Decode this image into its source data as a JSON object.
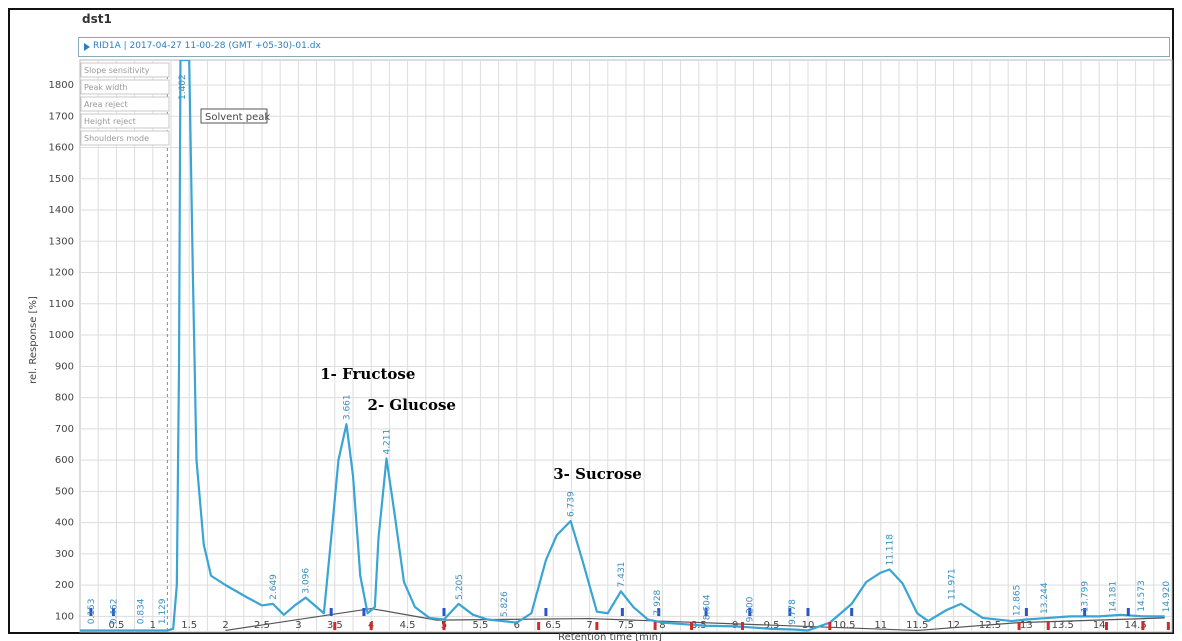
{
  "document": {
    "title": "dst1",
    "trace_label": "RID1A | 2017-04-27 11-00-28 (GMT +05-30)-01.dx"
  },
  "sidebar_menu": [
    "Slope sensitivity",
    "Peak width",
    "Area reject",
    "Height reject",
    "Shoulders mode"
  ],
  "solvent_peak_label": "Solvent peak",
  "colors": {
    "trace": "#3aa4d4",
    "baseline": "#555555",
    "grid": "#dddddd",
    "marker_blue": "#2a55c8",
    "marker_red": "#d22a2a"
  },
  "chart_data": {
    "type": "line",
    "title": "",
    "xlabel": "Retention time [min]",
    "ylabel": "rel. Response [%]",
    "xlim": [
      0,
      15
    ],
    "ylim": [
      50,
      1880
    ],
    "grid": true,
    "x_ticks": [
      0.5,
      1,
      1.5,
      2,
      2.5,
      3,
      3.5,
      4,
      4.5,
      5,
      5.5,
      6,
      6.5,
      7,
      7.5,
      8,
      8.5,
      9,
      9.5,
      10,
      10.5,
      11,
      11.5,
      12,
      12.5,
      13,
      13.5,
      14,
      14.5
    ],
    "x_tick_labels": [
      "0.5",
      "1",
      "1.5",
      "2",
      "2.5",
      "3",
      "3.5",
      "4",
      "4.5",
      "5",
      "5.5",
      "6",
      "6.5",
      "7",
      "7.5",
      "8",
      "8.5",
      "9",
      "9.5",
      "10",
      "10.5",
      "11",
      "11.5",
      "12",
      "12.5",
      "13",
      "13.5",
      "14",
      "14.5"
    ],
    "y_ticks": [
      100,
      200,
      300,
      400,
      500,
      600,
      700,
      800,
      900,
      1000,
      1100,
      1200,
      1300,
      1400,
      1500,
      1600,
      1700,
      1800
    ],
    "y_tick_labels": [
      "100",
      "200",
      "300",
      "400",
      "500",
      "600",
      "700",
      "800",
      "900",
      "1000",
      "1100",
      "1200",
      "1300",
      "1400",
      "1500",
      "1600",
      "1700",
      "1800"
    ],
    "series": [
      {
        "x": [
          0.0,
          0.3,
          1.0,
          1.2,
          1.28,
          1.33,
          1.36,
          1.38,
          1.41,
          1.45,
          1.5,
          1.55,
          1.6,
          1.7,
          1.8,
          2.0,
          2.3,
          2.5,
          2.65,
          2.8,
          2.95,
          3.1,
          3.25,
          3.35,
          3.45,
          3.55,
          3.66,
          3.75,
          3.85,
          3.95,
          4.05,
          4.1,
          4.21,
          4.32,
          4.45,
          4.6,
          4.8,
          5.0,
          5.2,
          5.4,
          5.6,
          5.8,
          6.0,
          6.2,
          6.4,
          6.55,
          6.74,
          6.9,
          7.1,
          7.25,
          7.43,
          7.6,
          7.8,
          8.0,
          8.3,
          8.6,
          9.0,
          9.2,
          9.5,
          9.8,
          10.0,
          10.3,
          10.6,
          10.8,
          11.0,
          11.12,
          11.3,
          11.5,
          11.65,
          11.9,
          12.1,
          12.4,
          12.8,
          13.0,
          13.3,
          13.6,
          13.8,
          14.0,
          14.3,
          14.6,
          14.9
        ],
        "y": [
          55,
          55,
          55,
          55,
          60,
          200,
          900,
          1880,
          1880,
          1880,
          1880,
          1200,
          600,
          330,
          230,
          200,
          160,
          135,
          140,
          105,
          135,
          160,
          130,
          110,
          350,
          600,
          715,
          550,
          230,
          110,
          130,
          350,
          605,
          430,
          210,
          130,
          95,
          90,
          140,
          105,
          90,
          85,
          80,
          110,
          280,
          360,
          405,
          280,
          115,
          110,
          180,
          130,
          90,
          80,
          75,
          70,
          68,
          65,
          60,
          58,
          55,
          80,
          140,
          210,
          240,
          250,
          205,
          110,
          85,
          120,
          140,
          95,
          85,
          90,
          95,
          100,
          100,
          100,
          105,
          100,
          100
        ]
      }
    ],
    "baseline": {
      "x": [
        2.0,
        4.0,
        4.9,
        7.0,
        11.5,
        12.9,
        14.9
      ],
      "y": [
        55,
        125,
        88,
        93,
        55,
        80,
        95
      ]
    },
    "peak_labels": [
      {
        "x": 0.153,
        "y": 62,
        "label": "0.153"
      },
      {
        "x": 0.462,
        "y": 62,
        "label": "0.462"
      },
      {
        "x": 0.834,
        "y": 62,
        "label": "0.834"
      },
      {
        "x": 1.129,
        "y": 62,
        "label": "1.129"
      },
      {
        "x": 1.4,
        "y": 1880,
        "label": "1.402"
      },
      {
        "x": 2.649,
        "y": 140,
        "label": "2.649"
      },
      {
        "x": 3.096,
        "y": 160,
        "label": "3.096"
      },
      {
        "x": 3.661,
        "y": 715,
        "label": "3.661"
      },
      {
        "x": 4.211,
        "y": 605,
        "label": "4.211"
      },
      {
        "x": 5.205,
        "y": 140,
        "label": "5.205"
      },
      {
        "x": 5.826,
        "y": 85,
        "label": "5.826"
      },
      {
        "x": 6.739,
        "y": 405,
        "label": "6.739"
      },
      {
        "x": 7.431,
        "y": 180,
        "label": "7.431"
      },
      {
        "x": 7.928,
        "y": 90,
        "label": "7.928"
      },
      {
        "x": 8.604,
        "y": 75,
        "label": "8.604"
      },
      {
        "x": 9.2,
        "y": 68,
        "label": "9.200"
      },
      {
        "x": 9.778,
        "y": 60,
        "label": "9.778"
      },
      {
        "x": 11.118,
        "y": 250,
        "label": "11.118"
      },
      {
        "x": 11.971,
        "y": 140,
        "label": "11.971"
      },
      {
        "x": 12.865,
        "y": 88,
        "label": "12.865"
      },
      {
        "x": 13.244,
        "y": 95,
        "label": "13.244"
      },
      {
        "x": 13.799,
        "y": 100,
        "label": "13.799"
      },
      {
        "x": 14.181,
        "y": 100,
        "label": "14.181"
      },
      {
        "x": 14.573,
        "y": 102,
        "label": "14.573"
      },
      {
        "x": 14.92,
        "y": 100,
        "label": "14.920"
      }
    ],
    "annotations": [
      {
        "text": "1- Fructose",
        "x": 3.3,
        "y": 860
      },
      {
        "text": "2- Glucose",
        "x": 3.95,
        "y": 760
      },
      {
        "text": "3- Sucrose",
        "x": 6.5,
        "y": 540
      }
    ],
    "markers_red": [
      3.5,
      4.0,
      5.0,
      6.3,
      7.1,
      7.9,
      8.4,
      9.1,
      10.3,
      12.9,
      13.3,
      14.1,
      14.6,
      14.95
    ],
    "markers_blue": [
      0.15,
      0.46,
      3.45,
      3.9,
      5.0,
      6.4,
      7.45,
      7.95,
      8.6,
      9.2,
      9.75,
      10.0,
      10.6,
      13.0,
      13.8,
      14.4
    ]
  }
}
